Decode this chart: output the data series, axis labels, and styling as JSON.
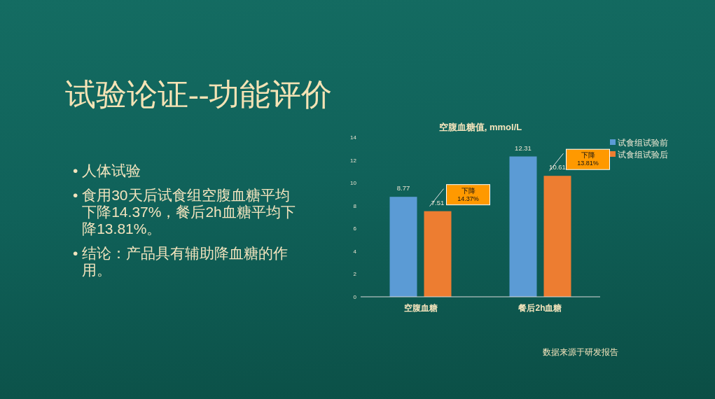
{
  "chart_data": {
    "type": "bar",
    "title": "试验论证--功能评价",
    "subtitle": "空腹血糖值, mmol/L",
    "categories": [
      "空腹血糖",
      "餐后2h血糖"
    ],
    "series": [
      {
        "name": "试食组试验前",
        "color": "#5b9bd5",
        "values": [
          8.77,
          12.31
        ]
      },
      {
        "name": "试食组试验后",
        "color": "#ed7d31",
        "values": [
          7.51,
          10.61
        ]
      }
    ],
    "ylim": [
      0,
      14
    ],
    "yticks": [
      0,
      2,
      4,
      6,
      8,
      10,
      12,
      14
    ],
    "data_labels": true,
    "legend": "top right",
    "annotations": [
      "下降\n14.37%",
      "下降\n13.81%",
      "• 人体试验",
      "• 食用30天后试食组空腹血糖平均下降14.37%，餐后2h血糖平均下降13.81%。",
      "• 结论：产品具有辅助降血糖的作用。",
      "数据来源于研发报告"
    ]
  }
}
